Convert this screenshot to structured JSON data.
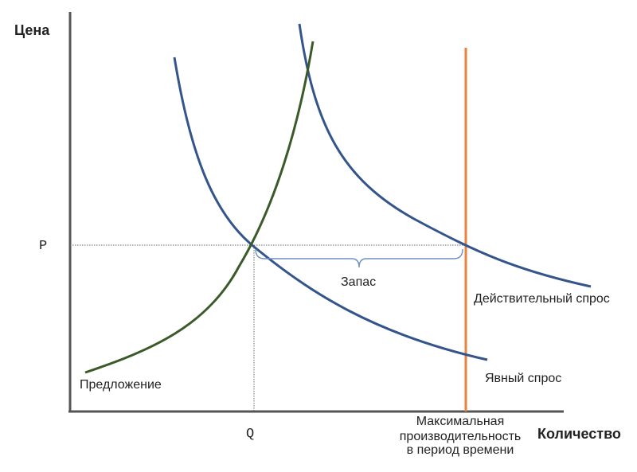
{
  "axes": {
    "y_title": "Цена",
    "x_title": "Количество"
  },
  "ticks": {
    "price": "P",
    "quantity": "Q"
  },
  "curves": {
    "supply": {
      "label": "Предложение",
      "color": "#3b5a2a"
    },
    "apparent_demand": {
      "label": "Явный спрос",
      "color": "#34548c"
    },
    "true_demand": {
      "label": "Действительный спрос",
      "color": "#34548c"
    }
  },
  "capacity": {
    "label_lines": [
      "Максимальная",
      "производительность",
      "в период времени"
    ],
    "color": "#e8823c"
  },
  "gap": {
    "label": "Запас",
    "color": "#6f8fc9"
  },
  "colors": {
    "axis": "#555555",
    "guide": "#666666"
  }
}
